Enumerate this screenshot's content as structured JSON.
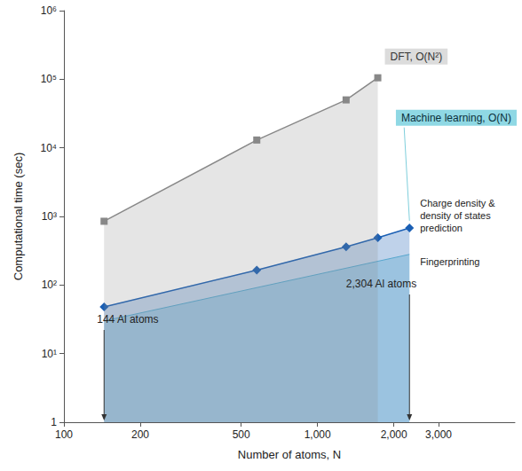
{
  "chart_data": {
    "type": "line",
    "xlabel": "Number of atoms, N",
    "ylabel": "Computational time (sec)",
    "log": true,
    "grid": false,
    "xlim": [
      100,
      6000
    ],
    "xticks": [
      100,
      200,
      500,
      {
        "value": 1000,
        "label": "1,000"
      },
      {
        "value": 2000,
        "label": "2,000"
      },
      {
        "value": 3000,
        "label": "3,000"
      }
    ],
    "ylim": [
      1,
      1000000
    ],
    "yticks": [
      1,
      {
        "value": 10,
        "label": "10¹"
      },
      {
        "value": 100,
        "label": "10²"
      },
      {
        "value": 1000,
        "label": "10³"
      },
      {
        "value": 10000,
        "label": "10⁴"
      },
      {
        "value": 100000,
        "label": "10⁵"
      },
      {
        "value": 1000000,
        "label": "10⁶"
      }
    ],
    "series": [
      {
        "name": "DFT, O(N²)",
        "color": "#888888",
        "marker": "square",
        "x": [
          144,
          576,
          1296,
          1728
        ],
        "values": [
          850,
          13000,
          50000,
          105000
        ]
      },
      {
        "name": "Machine learning, O(N)",
        "color": "#1a5fb4",
        "marker": "diamond",
        "x": [
          144,
          576,
          1296,
          1728,
          2304
        ],
        "values": [
          48,
          165,
          360,
          490,
          680
        ],
        "note": "Charge density & density of states prediction"
      },
      {
        "name": "Fingerprinting",
        "color": "#6fc3d8",
        "marker": "none",
        "x": [
          144,
          2304
        ],
        "values": [
          30,
          280
        ]
      }
    ],
    "annotations": [
      {
        "text": "144 Al atoms",
        "x": 144
      },
      {
        "text": "2,304 Al atoms",
        "x": 2304
      }
    ]
  }
}
